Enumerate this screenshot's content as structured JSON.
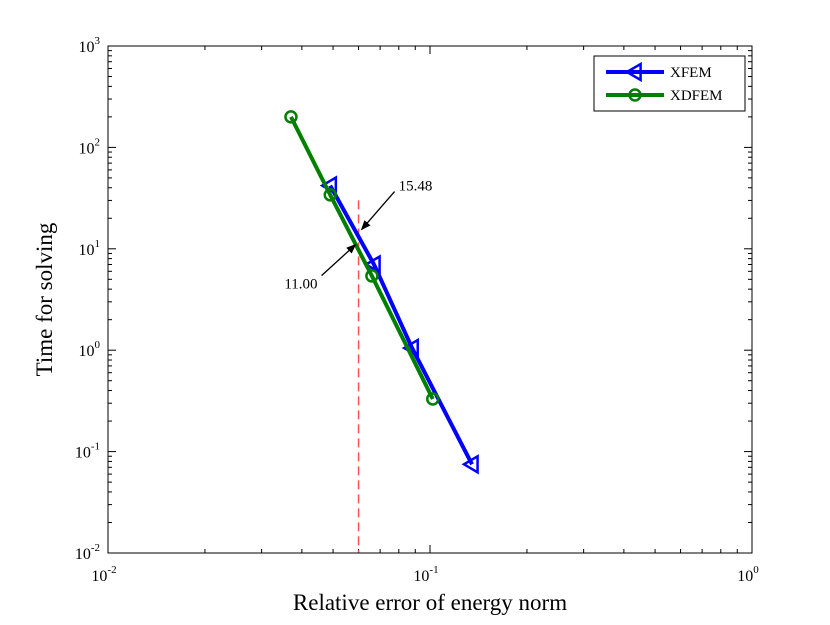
{
  "chart_data": {
    "type": "line",
    "scale": "log-log",
    "xlabel": "Relative error of energy norm",
    "ylabel": "Time for solving",
    "xlim": [
      0.01,
      1
    ],
    "ylim": [
      0.01,
      1000
    ],
    "x_ticks": [
      {
        "base": "10",
        "exp": "-2",
        "value": 0.01
      },
      {
        "base": "10",
        "exp": "-1",
        "value": 0.1
      },
      {
        "base": "10",
        "exp": "0",
        "value": 1
      }
    ],
    "y_ticks": [
      {
        "base": "10",
        "exp": "-2",
        "value": 0.01
      },
      {
        "base": "10",
        "exp": "-1",
        "value": 0.1
      },
      {
        "base": "10",
        "exp": "0",
        "value": 1
      },
      {
        "base": "10",
        "exp": "1",
        "value": 10
      },
      {
        "base": "10",
        "exp": "2",
        "value": 100
      },
      {
        "base": "10",
        "exp": "3",
        "value": 1000
      }
    ],
    "series": [
      {
        "name": "XFEM",
        "color": "#0000ff",
        "marker": "triangle-left",
        "x": [
          0.049,
          0.067,
          0.088,
          0.135
        ],
        "y": [
          42,
          7.0,
          1.05,
          0.075
        ]
      },
      {
        "name": "XDFEM",
        "color": "#007f00",
        "marker": "circle",
        "x": [
          0.037,
          0.049,
          0.066,
          0.102
        ],
        "y": [
          200,
          34,
          5.4,
          0.33
        ]
      }
    ],
    "reference_line": {
      "x": 0.06,
      "color": "#ff5050",
      "style": "dashed"
    },
    "annotations": [
      {
        "text": "15.48",
        "point": [
          0.06,
          15.48
        ]
      },
      {
        "text": "11.00",
        "point": [
          0.06,
          11.0
        ]
      }
    ],
    "legend": {
      "position": "top-right"
    },
    "grid": false
  }
}
